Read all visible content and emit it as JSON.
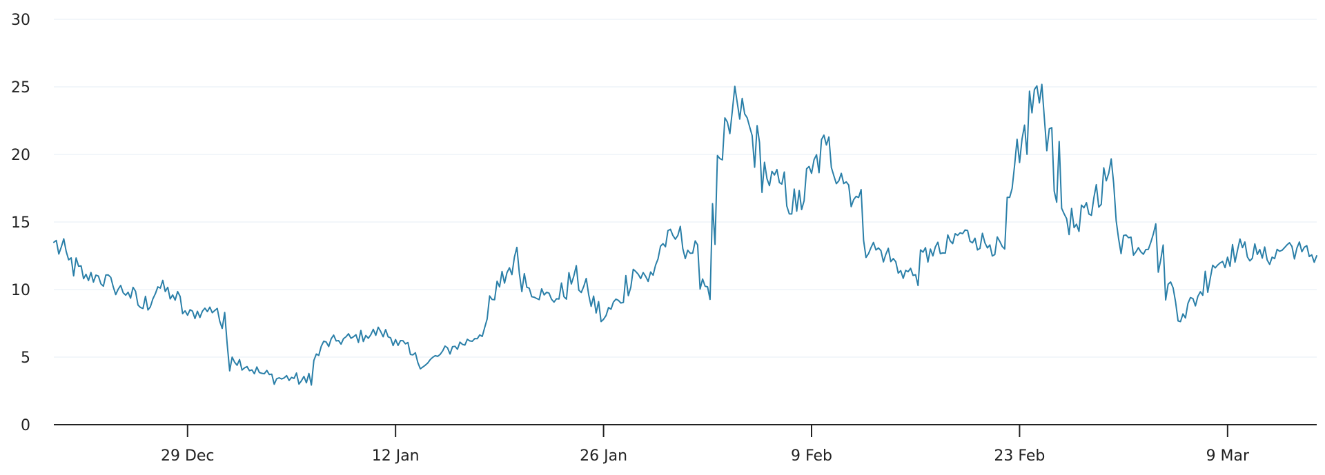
{
  "chart_data": {
    "type": "line",
    "title": "",
    "xlabel": "",
    "ylabel": "",
    "x_range": [
      "2025-12-20",
      "2026-03-15"
    ],
    "ylim": [
      0,
      30
    ],
    "y_ticks": [
      0,
      5,
      10,
      15,
      20,
      25,
      30
    ],
    "x_ticks": [
      {
        "date": "2025-12-29",
        "label": "29 Dec"
      },
      {
        "date": "2026-01-12",
        "label": "12 Jan"
      },
      {
        "date": "2026-01-26",
        "label": "26 Jan"
      },
      {
        "date": "2026-02-09",
        "label": "9 Feb"
      },
      {
        "date": "2026-02-23",
        "label": "23 Feb"
      },
      {
        "date": "2026-03-09",
        "label": "9 Mar"
      }
    ],
    "grid": {
      "horizontal": true,
      "vertical": false
    },
    "legend": "none",
    "colors": {
      "line": "#2a7fa8",
      "axis": "#222222",
      "grid": "#eef3f8"
    },
    "series": [
      {
        "x": [
          "2025-12-20",
          "2025-12-21",
          "2025-12-22",
          "2025-12-23",
          "2025-12-24",
          "2025-12-25",
          "2025-12-26",
          "2025-12-27",
          "2025-12-28",
          "2025-12-29",
          "2025-12-30",
          "2025-12-31",
          "2026-01-01",
          "2026-01-02",
          "2026-01-03",
          "2026-01-04",
          "2026-01-05",
          "2026-01-06",
          "2026-01-07",
          "2026-01-08",
          "2026-01-09",
          "2026-01-10",
          "2026-01-11",
          "2026-01-12",
          "2026-01-13",
          "2026-01-14",
          "2026-01-15",
          "2026-01-16",
          "2026-01-17",
          "2026-01-18",
          "2026-01-19",
          "2026-01-20",
          "2026-01-21",
          "2026-01-22",
          "2026-01-23",
          "2026-01-24",
          "2026-01-25",
          "2026-01-26",
          "2026-01-27",
          "2026-01-28",
          "2026-01-29",
          "2026-01-30",
          "2026-01-31",
          "2026-02-01",
          "2026-02-02",
          "2026-02-03",
          "2026-02-04",
          "2026-02-05",
          "2026-02-06",
          "2026-02-07",
          "2026-02-08",
          "2026-02-09",
          "2026-02-10",
          "2026-02-11",
          "2026-02-12",
          "2026-02-13",
          "2026-02-14",
          "2026-02-15",
          "2026-02-16",
          "2026-02-17",
          "2026-02-18",
          "2026-02-19",
          "2026-02-20",
          "2026-02-21",
          "2026-02-22",
          "2026-02-23",
          "2026-02-24",
          "2026-02-25",
          "2026-02-26",
          "2026-02-27",
          "2026-02-28",
          "2026-03-01",
          "2026-03-02",
          "2026-03-03",
          "2026-03-04",
          "2026-03-05",
          "2026-03-06",
          "2026-03-07",
          "2026-03-08",
          "2026-03-09",
          "2026-03-10",
          "2026-03-11",
          "2026-03-12",
          "2026-03-13",
          "2026-03-14",
          "2026-03-15"
        ],
        "values": [
          13.5,
          12.2,
          10.8,
          11.0,
          10.2,
          9.8,
          8.6,
          10.2,
          9.6,
          8.1,
          8.4,
          8.6,
          5.0,
          4.3,
          3.8,
          3.4,
          3.5,
          3.1,
          5.8,
          6.2,
          6.4,
          6.6,
          6.9,
          6.3,
          5.2,
          4.4,
          5.2,
          5.8,
          6.2,
          7.2,
          10.2,
          12.4,
          10.1,
          9.6,
          9.3,
          11.0,
          9.6,
          7.8,
          9.2,
          11.5,
          10.6,
          13.4,
          14.0,
          12.7,
          10.2,
          19.6,
          23.8,
          21.4,
          18.2,
          17.8,
          15.8,
          18.6,
          20.7,
          18.6,
          16.9,
          13.1,
          12.6,
          11.4,
          11.1,
          13.0,
          12.7,
          14.2,
          13.8,
          13.3,
          13.0,
          19.4,
          24.8,
          21.9,
          15.6,
          14.3,
          16.8,
          18.6,
          14.0,
          13.1,
          14.1,
          10.4,
          8.2,
          9.5,
          11.8,
          12.4,
          13.1,
          12.6,
          12.4,
          13.3,
          12.8,
          12.5
        ]
      }
    ]
  }
}
